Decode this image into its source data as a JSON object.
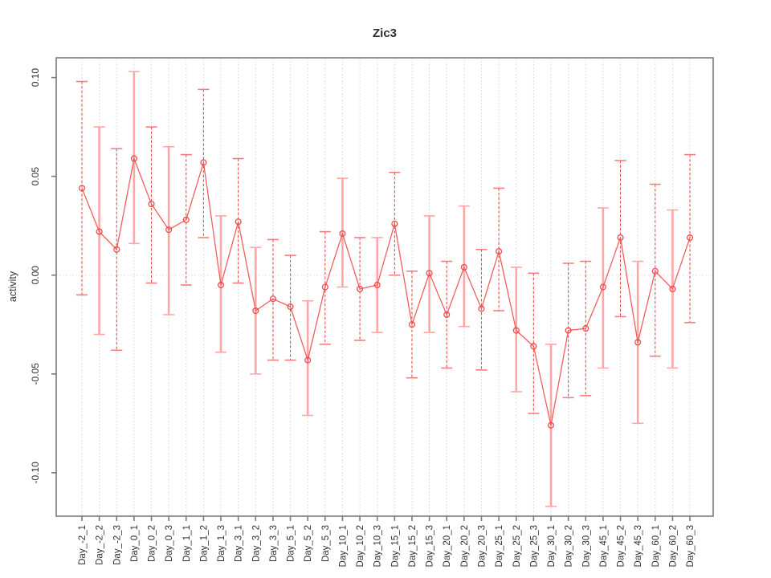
{
  "title": "Zic3",
  "ylabel": "activity",
  "chart_data": {
    "type": "line",
    "subtype": "points-with-error-bars",
    "title": "Zic3",
    "xlabel": "",
    "ylabel": "activity",
    "legend": "none",
    "grid": "vertical dotted gridlines at each category; dotted horizontal reference line at y=0",
    "ylim": [
      -0.122,
      0.11
    ],
    "ytick_values": [
      0.1,
      0.05,
      0.0,
      -0.05,
      -0.1
    ],
    "ytick_labels": [
      "0.10",
      "0.05",
      "0.00",
      "-0.05",
      "-0.10"
    ],
    "categories": [
      "Day_-2_1",
      "Day_-2_2",
      "Day_-2_3",
      "Day_0_1",
      "Day_0_2",
      "Day_0_3",
      "Day_1_1",
      "Day_1_2",
      "Day_1_3",
      "Day_3_1",
      "Day_3_2",
      "Day_3_3",
      "Day_5_1",
      "Day_5_2",
      "Day_5_3",
      "Day_10_1",
      "Day_10_2",
      "Day_10_3",
      "Day_15_1",
      "Day_15_2",
      "Day_15_3",
      "Day_20_1",
      "Day_20_2",
      "Day_20_3",
      "Day_25_1",
      "Day_25_2",
      "Day_25_3",
      "Day_30_1",
      "Day_30_2",
      "Day_30_3",
      "Day_45_1",
      "Day_45_2",
      "Day_45_3",
      "Day_60_1",
      "Day_60_2",
      "Day_60_3"
    ],
    "values": [
      0.044,
      0.022,
      0.013,
      0.059,
      0.036,
      0.023,
      0.028,
      0.057,
      -0.005,
      0.027,
      -0.018,
      -0.012,
      -0.016,
      -0.043,
      -0.006,
      0.021,
      -0.007,
      -0.005,
      0.026,
      -0.025,
      0.001,
      -0.02,
      0.004,
      -0.017,
      0.012,
      -0.028,
      -0.036,
      -0.076,
      -0.028,
      -0.027,
      -0.006,
      0.019,
      -0.034,
      0.002,
      -0.007,
      0.019
    ],
    "err_high": [
      0.098,
      0.075,
      0.064,
      0.103,
      0.075,
      0.065,
      0.061,
      0.094,
      0.03,
      0.059,
      0.014,
      0.018,
      0.01,
      -0.013,
      0.022,
      0.049,
      0.019,
      0.019,
      0.052,
      0.002,
      0.03,
      0.007,
      0.035,
      0.013,
      0.044,
      0.004,
      0.001,
      -0.035,
      0.006,
      0.007,
      0.034,
      0.058,
      0.007,
      0.046,
      0.033,
      0.061
    ],
    "err_low": [
      -0.01,
      -0.03,
      -0.038,
      0.016,
      -0.004,
      -0.02,
      -0.005,
      0.019,
      -0.039,
      -0.004,
      -0.05,
      -0.043,
      -0.043,
      -0.071,
      -0.035,
      -0.006,
      -0.033,
      -0.029,
      0.0,
      -0.052,
      -0.029,
      -0.047,
      -0.026,
      -0.048,
      -0.018,
      -0.059,
      -0.07,
      -0.117,
      -0.062,
      -0.061,
      -0.047,
      -0.021,
      -0.075,
      -0.041,
      -0.047,
      -0.024
    ],
    "bar_styles": [
      "dashed",
      "solid",
      "dashed",
      "solid",
      "dashed",
      "solid",
      "dashed",
      "dashed",
      "solid",
      "dashed",
      "solid",
      "dashed",
      "dashed",
      "solid",
      "dashed",
      "solid",
      "dashed",
      "solid",
      "dashed",
      "dashed",
      "solid",
      "dashed",
      "solid",
      "dashed",
      "dashed",
      "solid",
      "dashed",
      "solid",
      "dashed",
      "dashed",
      "solid",
      "dashed",
      "solid",
      "dashed",
      "solid",
      "dashed"
    ],
    "colors": {
      "line": "#f15e5e",
      "point": "#ed4b4b",
      "bar_dashed": "#ed4b4b",
      "bar_solid": "#ffa6a6",
      "cap_dashed": "#f37e7e",
      "cap_solid": "#ffa6a6",
      "grid": "#d8d8d8",
      "zero_line": "#dcdcdc",
      "axis": "#7a7a7a",
      "text": "#303030"
    }
  }
}
